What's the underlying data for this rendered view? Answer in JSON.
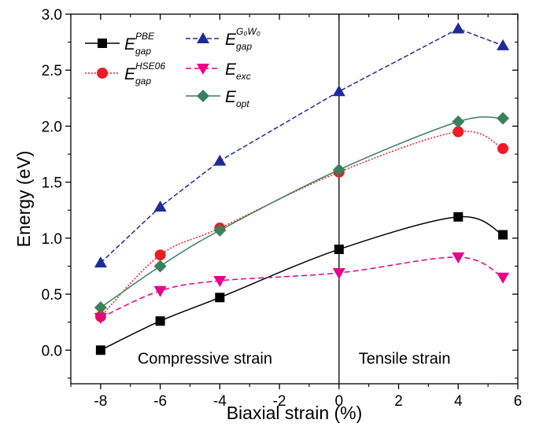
{
  "chart_data": {
    "type": "line",
    "xlabel": "Biaxial strain (%)",
    "ylabel": "Energy (eV)",
    "xlim": [
      -9,
      6
    ],
    "ylim": [
      -0.3,
      3.0
    ],
    "xticks": [
      -8,
      -6,
      -4,
      -2,
      0,
      2,
      4,
      6
    ],
    "xtick_labels": [
      "-8",
      "-6",
      "-4",
      "-2",
      "0",
      "2",
      "4",
      "6"
    ],
    "yticks": [
      0.0,
      0.5,
      1.0,
      1.5,
      2.0,
      2.5,
      3.0
    ],
    "ytick_labels": [
      "0.0",
      "0.5",
      "1.0",
      "1.5",
      "2.0",
      "2.5",
      "3.0"
    ],
    "grid": false,
    "legend_position": "top-left",
    "vertical_line_x": 0,
    "annotations": [
      {
        "text": "Compressive strain",
        "x": -4.5,
        "y": -0.12
      },
      {
        "text": "Tensile strain",
        "x": 2.2,
        "y": -0.12
      }
    ],
    "series": [
      {
        "name": "E",
        "sup": "PBE",
        "sub": "gap",
        "marker": "square",
        "color": "#000000",
        "dash": "",
        "curve": "spline",
        "x": [
          -8,
          -6,
          -4,
          0,
          4,
          5.5
        ],
        "y": [
          0.0,
          0.26,
          0.47,
          0.9,
          1.19,
          1.03
        ]
      },
      {
        "name": "E",
        "sup": "HSE06",
        "sub": "gap",
        "marker": "circle",
        "color": "#ee1c25",
        "dash": "2,2",
        "curve": "spline",
        "x": [
          -8,
          -6,
          -4,
          0,
          4,
          5.5
        ],
        "y": [
          0.3,
          0.85,
          1.09,
          1.59,
          1.95,
          1.8
        ]
      },
      {
        "name": "E",
        "sup": "G₀W₀",
        "sub": "gap",
        "marker": "triangle-up",
        "color": "#1f2b99",
        "dash": "6,3",
        "curve": "linear",
        "x": [
          -8,
          -6,
          -4,
          0,
          4,
          5.5
        ],
        "y": [
          0.78,
          1.28,
          1.69,
          2.31,
          2.87,
          2.72
        ]
      },
      {
        "name": "E",
        "sup": "",
        "sub": "exc",
        "marker": "triangle-down",
        "color": "#e6008a",
        "dash": "7,4",
        "curve": "spline",
        "x": [
          -8,
          -6,
          -4,
          0,
          4,
          5.5
        ],
        "y": [
          0.29,
          0.53,
          0.62,
          0.69,
          0.83,
          0.65
        ]
      },
      {
        "name": "E",
        "sup": "",
        "sub": "opt",
        "marker": "diamond",
        "color": "#3d7f5c",
        "dash": "",
        "curve": "spline",
        "x": [
          -8,
          -6,
          -4,
          0,
          4,
          5.5
        ],
        "y": [
          0.38,
          0.75,
          1.07,
          1.61,
          2.04,
          2.07
        ]
      }
    ]
  }
}
